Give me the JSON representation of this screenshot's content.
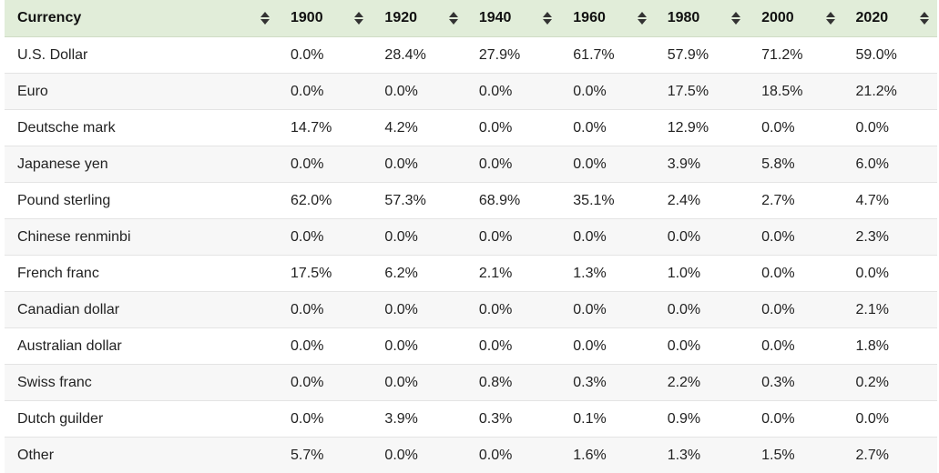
{
  "chart_data": {
    "type": "table",
    "columns": [
      "Currency",
      "1900",
      "1920",
      "1940",
      "1960",
      "1980",
      "2000",
      "2020"
    ],
    "rows": [
      [
        "U.S. Dollar",
        "0.0%",
        "28.4%",
        "27.9%",
        "61.7%",
        "57.9%",
        "71.2%",
        "59.0%"
      ],
      [
        "Euro",
        "0.0%",
        "0.0%",
        "0.0%",
        "0.0%",
        "17.5%",
        "18.5%",
        "21.2%"
      ],
      [
        "Deutsche mark",
        "14.7%",
        "4.2%",
        "0.0%",
        "0.0%",
        "12.9%",
        "0.0%",
        "0.0%"
      ],
      [
        "Japanese yen",
        "0.0%",
        "0.0%",
        "0.0%",
        "0.0%",
        "3.9%",
        "5.8%",
        "6.0%"
      ],
      [
        "Pound sterling",
        "62.0%",
        "57.3%",
        "68.9%",
        "35.1%",
        "2.4%",
        "2.7%",
        "4.7%"
      ],
      [
        "Chinese renminbi",
        "0.0%",
        "0.0%",
        "0.0%",
        "0.0%",
        "0.0%",
        "0.0%",
        "2.3%"
      ],
      [
        "French franc",
        "17.5%",
        "6.2%",
        "2.1%",
        "1.3%",
        "1.0%",
        "0.0%",
        "0.0%"
      ],
      [
        "Canadian dollar",
        "0.0%",
        "0.0%",
        "0.0%",
        "0.0%",
        "0.0%",
        "0.0%",
        "2.1%"
      ],
      [
        "Australian dollar",
        "0.0%",
        "0.0%",
        "0.0%",
        "0.0%",
        "0.0%",
        "0.0%",
        "1.8%"
      ],
      [
        "Swiss franc",
        "0.0%",
        "0.0%",
        "0.8%",
        "0.3%",
        "2.2%",
        "0.3%",
        "0.2%"
      ],
      [
        "Dutch guilder",
        "0.0%",
        "3.9%",
        "0.3%",
        "0.1%",
        "0.9%",
        "0.0%",
        "0.0%"
      ],
      [
        "Other",
        "5.7%",
        "0.0%",
        "0.0%",
        "1.6%",
        "1.3%",
        "1.5%",
        "2.7%"
      ]
    ]
  },
  "colors": {
    "header_background": "#e1edd9",
    "row_alt_background": "#f7f7f7",
    "row_divider": "#e4e4e4"
  },
  "icons": {
    "sort": "sort-arrows-icon"
  }
}
